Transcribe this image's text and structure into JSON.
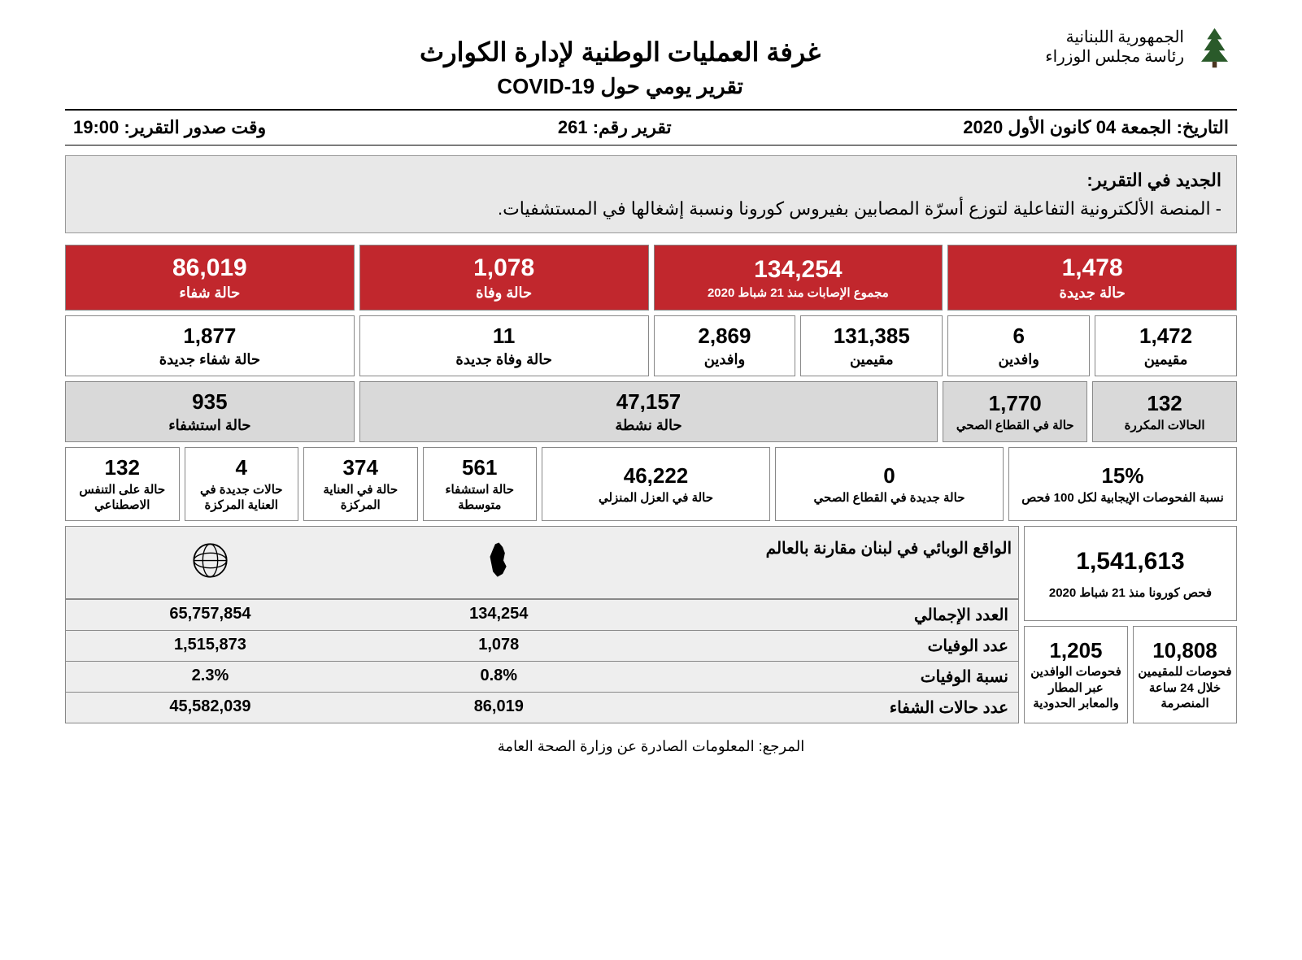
{
  "header": {
    "org_line1": "الجمهورية اللبنانية",
    "org_line2": "رئاسة مجلس الوزراء",
    "title_main": "غرفة العمليات الوطنية لإدارة الكوارث",
    "title_sub": "تقرير يومي حول COVID-19"
  },
  "meta": {
    "date_label": "التاريخ:",
    "date_value": "الجمعة 04 كانون الأول 2020",
    "report_no_label": "تقرير رقم:",
    "report_no_value": "261",
    "time_label": "وقت صدور التقرير:",
    "time_value": "19:00"
  },
  "news": {
    "title": "الجديد في التقرير:",
    "item": "- المنصة الألكترونية التفاعلية لتوزع أسرّة المصابين بفيروس كورونا ونسبة إشغالها في المستشفيات."
  },
  "red_row": [
    {
      "value": "1,478",
      "label": "حالة جديدة"
    },
    {
      "value": "134,254",
      "label": "مجموع الإصابات منذ 21 شباط 2020"
    },
    {
      "value": "1,078",
      "label": "حالة وفاة"
    },
    {
      "value": "86,019",
      "label": "حالة شفاء"
    }
  ],
  "sub_row": [
    {
      "value": "1,472",
      "label": "مقيمين"
    },
    {
      "value": "6",
      "label": "وافدين"
    },
    {
      "value": "131,385",
      "label": "مقيمين"
    },
    {
      "value": "2,869",
      "label": "وافدين"
    },
    {
      "value": "11",
      "label": "حالة وفاة جديدة",
      "span": 2
    },
    {
      "value": "1,877",
      "label": "حالة شفاء جديدة",
      "span": 2
    }
  ],
  "gray_row1": [
    {
      "value": "132",
      "label": "الحالات المكررة"
    },
    {
      "value": "1,770",
      "label": "حالة في القطاع الصحي"
    },
    {
      "value": "47,157",
      "label": "حالة نشطة"
    },
    {
      "value": "935",
      "label": "حالة استشفاء",
      "wide": true
    }
  ],
  "gray_row2": [
    {
      "value": "15%",
      "label": "نسبة الفحوصات الإيجابية لكل 100 فحص"
    },
    {
      "value": "0",
      "label": "حالة جديدة في القطاع الصحي"
    },
    {
      "value": "46,222",
      "label": "حالة في العزل المنزلي"
    },
    {
      "value": "561",
      "label": "حالة استشفاء متوسطة"
    },
    {
      "value": "374",
      "label": "حالة في العناية المركزة"
    },
    {
      "value": "4",
      "label": "حالات جديدة في العناية المركزة"
    },
    {
      "value": "132",
      "label": "حالة على التنفس الاصطناعي"
    }
  ],
  "tests": {
    "total": {
      "value": "1,541,613",
      "label": "فحص كورونا منذ 21 شباط 2020"
    },
    "sub": [
      {
        "value": "10,808",
        "label": "فحوصات للمقيمين خلال 24 ساعة المنصرمة"
      },
      {
        "value": "1,205",
        "label": "فحوصات الوافدين عبر المطار والمعابر الحدودية"
      }
    ]
  },
  "comparison": {
    "title": "الواقع الوبائي في لبنان مقارنة بالعالم",
    "col_lebanon": "lebanon",
    "col_world": "world",
    "rows": [
      {
        "label": "العدد الإجمالي",
        "lebanon": "134,254",
        "world": "65,757,854"
      },
      {
        "label": "عدد الوفيات",
        "lebanon": "1,078",
        "world": "1,515,873"
      },
      {
        "label": "نسبة الوفيات",
        "lebanon": "0.8%",
        "world": "2.3%"
      },
      {
        "label": "عدد حالات الشفاء",
        "lebanon": "86,019",
        "world": "45,582,039"
      }
    ]
  },
  "footer": "المرجع: المعلومات الصادرة عن وزارة الصحة العامة",
  "colors": {
    "red": "#c1272d",
    "gray": "#d9d9d9",
    "lightgray": "#eeeeee"
  }
}
